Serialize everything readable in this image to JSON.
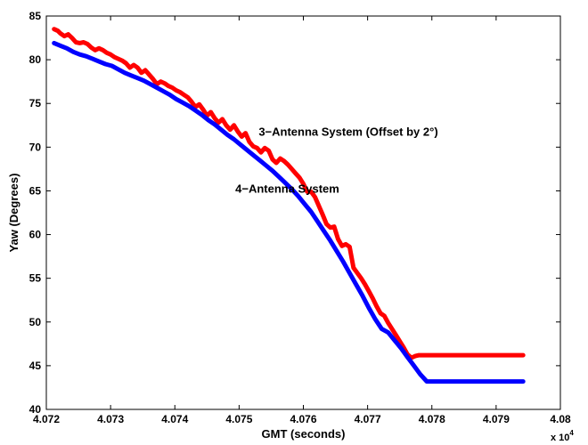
{
  "chart_data": {
    "type": "line",
    "title": "",
    "xlabel": "GMT (seconds)",
    "ylabel": "Yaw (Degrees)",
    "x_multiplier_label": "x 10",
    "x_multiplier_exponent": "4",
    "xlim": [
      4.072,
      4.08
    ],
    "ylim": [
      40,
      85
    ],
    "xticks": [
      "4.072",
      "4.073",
      "4.074",
      "4.075",
      "4.076",
      "4.077",
      "4.078",
      "4.079",
      "4.08"
    ],
    "yticks": [
      "40",
      "45",
      "50",
      "55",
      "60",
      "65",
      "70",
      "75",
      "80",
      "85"
    ],
    "grid": false,
    "legend": "none",
    "annotations": [
      {
        "text": "3−Antenna System (Offset by 2°)",
        "series": "3-Antenna System",
        "at": [
          4.0767,
          71.3
        ]
      },
      {
        "text": "4−Antenna System",
        "series": "4-Antenna System",
        "at": [
          4.07575,
          64.8
        ]
      }
    ],
    "series": [
      {
        "name": "3-Antenna System",
        "color": "#ff0000",
        "x": [
          4.07212,
          4.07218,
          4.07222,
          4.07228,
          4.07234,
          4.0724,
          4.07246,
          4.07252,
          4.07258,
          4.07264,
          4.0727,
          4.07276,
          4.07282,
          4.07288,
          4.07294,
          4.073,
          4.07306,
          4.07312,
          4.07318,
          4.07324,
          4.0733,
          4.07336,
          4.07342,
          4.07348,
          4.07354,
          4.0736,
          4.07366,
          4.07372,
          4.07378,
          4.07384,
          4.0739,
          4.07396,
          4.07402,
          4.07408,
          4.07414,
          4.0742,
          4.07426,
          4.07432,
          4.07438,
          4.07444,
          4.0745,
          4.07456,
          4.07462,
          4.07468,
          4.07474,
          4.0748,
          4.07486,
          4.07492,
          4.07498,
          4.07504,
          4.0751,
          4.07516,
          4.07522,
          4.07528,
          4.07534,
          4.0754,
          4.07546,
          4.07552,
          4.07558,
          4.07564,
          4.0757,
          4.07576,
          4.07582,
          4.07588,
          4.07594,
          4.076,
          4.07606,
          4.07612,
          4.07618,
          4.07624,
          4.0763,
          4.07636,
          4.07642,
          4.07648,
          4.07654,
          4.0766,
          4.07666,
          4.07672,
          4.07678,
          4.07684,
          4.0769,
          4.07696,
          4.07702,
          4.07708,
          4.07714,
          4.0772,
          4.07726,
          4.07732,
          4.07738,
          4.07744,
          4.0775,
          4.07756,
          4.07762,
          4.07768,
          4.07774,
          4.0778,
          4.07786,
          4.07792,
          4.07798,
          4.07804,
          4.0781,
          4.07816,
          4.07822,
          4.07828,
          4.07834,
          4.0784,
          4.07846,
          4.07852,
          4.07858,
          4.07864,
          4.0787,
          4.07876,
          4.07882,
          4.07888,
          4.07894,
          4.079,
          4.07906,
          4.07912,
          4.07918,
          4.07924,
          4.0793,
          4.07936,
          4.07942
        ],
        "y": [
          83.5,
          83.3,
          83.0,
          82.7,
          82.9,
          82.5,
          82.0,
          81.9,
          82.0,
          81.8,
          81.4,
          81.1,
          81.3,
          81.1,
          80.8,
          80.6,
          80.3,
          80.1,
          79.9,
          79.6,
          79.1,
          79.4,
          79.1,
          78.5,
          78.8,
          78.3,
          77.8,
          77.2,
          77.5,
          77.3,
          77.0,
          76.8,
          76.5,
          76.3,
          76.0,
          75.7,
          75.2,
          74.6,
          74.9,
          74.3,
          73.6,
          74.0,
          73.3,
          72.8,
          73.2,
          72.5,
          72.0,
          72.5,
          71.8,
          71.2,
          71.6,
          70.6,
          70.1,
          69.9,
          69.4,
          69.9,
          69.6,
          68.6,
          68.2,
          68.7,
          68.4,
          68.0,
          67.5,
          67.0,
          66.5,
          65.8,
          64.9,
          64.9,
          64.3,
          63.3,
          62.3,
          61.2,
          60.8,
          60.9,
          59.5,
          58.7,
          58.9,
          58.6,
          56.2,
          55.6,
          55.0,
          54.3,
          53.5,
          52.7,
          51.8,
          51.0,
          50.7,
          49.9,
          49.2,
          48.5,
          47.8,
          47.1,
          46.3,
          45.9,
          46.1,
          46.2,
          46.2,
          46.2,
          46.2,
          46.2,
          46.2,
          46.2,
          46.2,
          46.2,
          46.2,
          46.2,
          46.2,
          46.2,
          46.2,
          46.2,
          46.2,
          46.2,
          46.2,
          46.2,
          46.2,
          46.2,
          46.2,
          46.2,
          46.2,
          46.2,
          46.2,
          46.2,
          46.2
        ]
      },
      {
        "name": "4-Antenna System",
        "color": "#0000ff",
        "x": [
          4.07212,
          4.07222,
          4.07232,
          4.07242,
          4.07252,
          4.07262,
          4.07272,
          4.07282,
          4.07292,
          4.07302,
          4.07312,
          4.07322,
          4.07332,
          4.07342,
          4.07352,
          4.07362,
          4.07372,
          4.07382,
          4.07392,
          4.07402,
          4.07412,
          4.07422,
          4.07432,
          4.07442,
          4.07452,
          4.07462,
          4.07472,
          4.07482,
          4.07492,
          4.07502,
          4.07512,
          4.07522,
          4.07532,
          4.07542,
          4.07552,
          4.07562,
          4.07572,
          4.07582,
          4.07592,
          4.07602,
          4.07612,
          4.07622,
          4.07632,
          4.07642,
          4.07652,
          4.07662,
          4.07672,
          4.07682,
          4.07692,
          4.07702,
          4.07712,
          4.07722,
          4.07732,
          4.07742,
          4.07752,
          4.07762,
          4.07772,
          4.07782,
          4.07792,
          4.07802,
          4.07812,
          4.07822,
          4.07832,
          4.07842,
          4.07852,
          4.07862,
          4.07872,
          4.07882,
          4.07892,
          4.07902,
          4.07912,
          4.07922,
          4.07932,
          4.07942
        ],
        "y": [
          81.9,
          81.6,
          81.3,
          80.9,
          80.6,
          80.4,
          80.1,
          79.8,
          79.5,
          79.3,
          78.9,
          78.5,
          78.2,
          77.9,
          77.6,
          77.2,
          76.8,
          76.4,
          76.0,
          75.5,
          75.1,
          74.7,
          74.2,
          73.7,
          73.1,
          72.6,
          72.0,
          71.4,
          70.9,
          70.3,
          69.7,
          69.1,
          68.5,
          67.9,
          67.3,
          66.6,
          65.9,
          65.2,
          64.4,
          63.5,
          62.6,
          61.5,
          60.4,
          59.3,
          58.1,
          56.9,
          55.6,
          54.3,
          53.0,
          51.6,
          50.3,
          49.2,
          48.8,
          47.9,
          47.0,
          46.0,
          45.0,
          44.0,
          43.2,
          43.2,
          43.2,
          43.2,
          43.2,
          43.2,
          43.2,
          43.2,
          43.2,
          43.2,
          43.2,
          43.2,
          43.2,
          43.2,
          43.2,
          43.2
        ]
      }
    ]
  }
}
